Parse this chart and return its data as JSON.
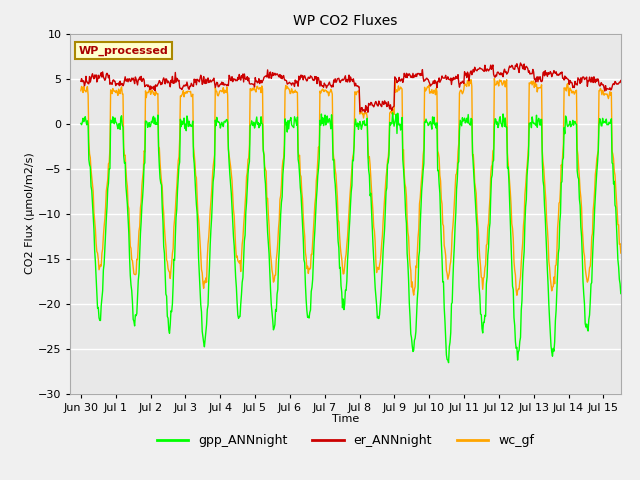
{
  "title": "WP CO2 Fluxes",
  "xlabel": "Time",
  "ylabel": "CO2 Flux (μmol/m2/s)",
  "ylim": [
    -30,
    10
  ],
  "xlim_days": [
    -0.3,
    15.5
  ],
  "tick_labels": [
    "Jun 30",
    "Jul 1",
    "Jul 2",
    "Jul 3",
    "Jul 4",
    "Jul 5",
    "Jul 6",
    "Jul 7",
    "Jul 8",
    "Jul 9",
    "Jul 10",
    "Jul 11",
    "Jul 12",
    "Jul 13",
    "Jul 14",
    "Jul 15"
  ],
  "tick_positions": [
    0,
    1,
    2,
    3,
    4,
    5,
    6,
    7,
    8,
    9,
    10,
    11,
    12,
    13,
    14,
    15
  ],
  "gpp_color": "#00FF00",
  "er_color": "#CC0000",
  "wc_color": "#FFA500",
  "legend_labels": [
    "gpp_ANNnight",
    "er_ANNnight",
    "wc_gf"
  ],
  "annotation_text": "WP_processed",
  "annotation_bg": "#FFFFCC",
  "annotation_fg": "#AA0000",
  "annotation_border": "#AA8800",
  "background_color": "#E8E8E8",
  "fig_facecolor": "#F0F0F0",
  "grid_color": "#FFFFFF",
  "yticks": [
    10,
    5,
    0,
    -5,
    -10,
    -15,
    -20,
    -25,
    -30
  ],
  "lw_gpp": 1.0,
  "lw_er": 1.0,
  "lw_wc": 1.0,
  "title_fontsize": 10,
  "label_fontsize": 8,
  "tick_fontsize": 8
}
